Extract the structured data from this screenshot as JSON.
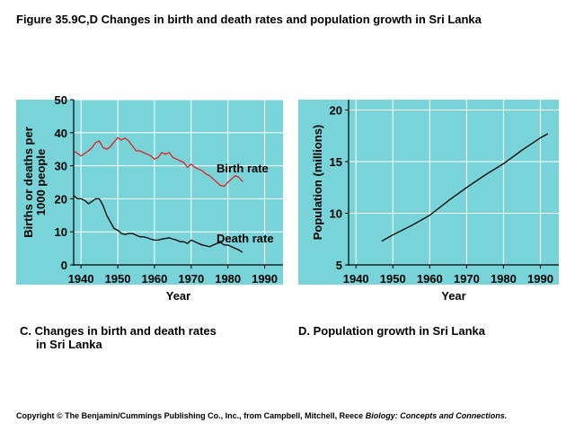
{
  "figure_title": "Figure 35.9C,D  Changes in birth and death rates and population growth in Sri Lanka",
  "captions": {
    "c_line1": "C. Changes in birth and death rates",
    "c_line2": "in Sri Lanka",
    "d": "D. Population growth in Sri Lanka"
  },
  "copyright": {
    "text": "Copyright © The Benjamin/Cummings Publishing Co., Inc., from Campbell, Mitchell, Reece",
    "book": "Biology: Concepts and Connections."
  },
  "colors": {
    "panel_background": "#78d4d8",
    "birth_rate_line": "#e02020",
    "death_rate_line": "#000000",
    "population_line": "#000000"
  },
  "chart_data": [
    {
      "id": "panel-c",
      "type": "line",
      "title": "",
      "xlabel": "Year",
      "ylabel_lines": [
        "Births or deaths per",
        "1000 people"
      ],
      "xlim": [
        1938,
        1995
      ],
      "ylim": [
        0,
        50
      ],
      "x_ticks": [
        1940,
        1950,
        1960,
        1970,
        1980,
        1990
      ],
      "y_ticks": [
        0,
        10,
        20,
        30,
        40,
        50
      ],
      "grid": true,
      "series": [
        {
          "name": "Birth rate",
          "color": "#e02020",
          "x": [
            1938,
            1940,
            1942,
            1943,
            1944,
            1945,
            1946,
            1947,
            1948,
            1949,
            1950,
            1951,
            1952,
            1953,
            1954,
            1955,
            1956,
            1957,
            1958,
            1959,
            1960,
            1961,
            1962,
            1963,
            1964,
            1965,
            1966,
            1967,
            1968,
            1969,
            1970,
            1971,
            1972,
            1973,
            1974,
            1975,
            1976,
            1977,
            1978,
            1979,
            1980,
            1981,
            1982,
            1983,
            1984
          ],
          "y": [
            34.5,
            33,
            34.5,
            35.5,
            37,
            37.5,
            35.5,
            35,
            35.8,
            37.2,
            38.5,
            37.8,
            38.4,
            37.5,
            36,
            34.5,
            34.5,
            34,
            33.5,
            33,
            32,
            32.5,
            34,
            33.5,
            34,
            32.5,
            32,
            31.5,
            31,
            29.5,
            30.5,
            29.5,
            29,
            28.5,
            27.5,
            27,
            26,
            25,
            24,
            23.8,
            25,
            26,
            27,
            26.5,
            25.2
          ]
        },
        {
          "name": "Death rate",
          "color": "#000000",
          "x": [
            1938,
            1939,
            1940,
            1941,
            1942,
            1943,
            1944,
            1945,
            1946,
            1947,
            1948,
            1949,
            1950,
            1951,
            1952,
            1953,
            1954,
            1955,
            1956,
            1957,
            1958,
            1959,
            1960,
            1961,
            1962,
            1963,
            1964,
            1965,
            1966,
            1967,
            1968,
            1969,
            1970,
            1971,
            1972,
            1973,
            1974,
            1975,
            1976,
            1977,
            1978,
            1979,
            1980,
            1981,
            1982,
            1983,
            1984
          ],
          "y": [
            21,
            20,
            20,
            19.5,
            18.5,
            19.2,
            20,
            20,
            18,
            15,
            13,
            11,
            10.5,
            9.5,
            9.2,
            9.5,
            9.5,
            9,
            8.5,
            8.5,
            8.2,
            7.8,
            7.5,
            7.5,
            7.8,
            8,
            8.2,
            7.8,
            7.5,
            7,
            7,
            6.5,
            7.5,
            7,
            6.5,
            6,
            5.8,
            5.5,
            6,
            6.5,
            6.8,
            6,
            6,
            5.5,
            5,
            4.5,
            3.8
          ]
        }
      ]
    },
    {
      "id": "panel-d",
      "type": "line",
      "title": "",
      "xlabel": "Year",
      "ylabel": "Population (millions)",
      "xlim": [
        1938,
        1995
      ],
      "ylim": [
        5,
        21
      ],
      "x_ticks": [
        1940,
        1950,
        1960,
        1970,
        1980,
        1990
      ],
      "y_ticks": [
        5,
        10,
        15,
        20
      ],
      "grid": true,
      "series": [
        {
          "name": "",
          "color": "#000000",
          "x": [
            1947,
            1950,
            1955,
            1960,
            1965,
            1970,
            1975,
            1980,
            1985,
            1990,
            1992
          ],
          "y": [
            7.3,
            7.9,
            8.8,
            9.8,
            11.2,
            12.5,
            13.7,
            14.8,
            16.1,
            17.3,
            17.7
          ]
        }
      ]
    }
  ]
}
